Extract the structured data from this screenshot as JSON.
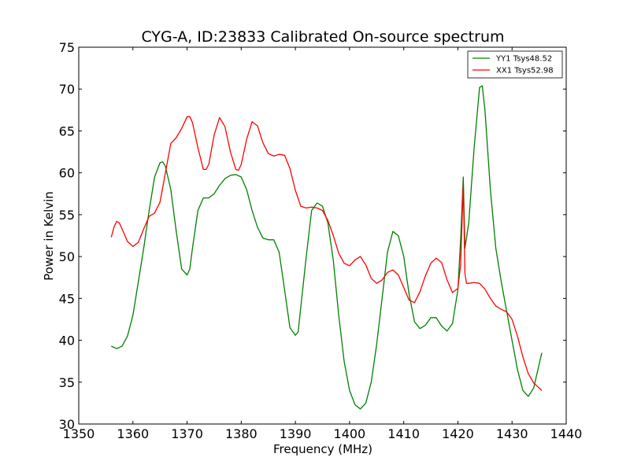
{
  "chart_data": {
    "type": "line",
    "title": "CYG-A, ID:23833 Calibrated On-source spectrum",
    "xlabel": "Frequency (MHz)",
    "ylabel": "Power in Kelvin",
    "xlim": [
      1350,
      1440
    ],
    "ylim": [
      30,
      75
    ],
    "xticks": [
      1350,
      1360,
      1370,
      1380,
      1390,
      1400,
      1410,
      1420,
      1430,
      1440
    ],
    "yticks": [
      30,
      35,
      40,
      45,
      50,
      55,
      60,
      65,
      70,
      75
    ],
    "grid": false,
    "legend_position": "top-right",
    "series": [
      {
        "name": "YY1 Tsys48.52",
        "color": "#008000",
        "x": [
          1356,
          1357,
          1358,
          1359,
          1360,
          1361,
          1362,
          1363,
          1364,
          1365,
          1365.5,
          1366,
          1367,
          1368,
          1369,
          1370,
          1370.5,
          1371,
          1372,
          1373,
          1374,
          1375,
          1376,
          1377,
          1378,
          1379,
          1380,
          1381,
          1382,
          1383,
          1384,
          1385,
          1386,
          1387,
          1388,
          1389,
          1390,
          1390.5,
          1391,
          1392,
          1393,
          1394,
          1395,
          1396,
          1397,
          1398,
          1399,
          1400,
          1401,
          1402,
          1403,
          1404,
          1405,
          1406,
          1407,
          1408,
          1409,
          1410,
          1411,
          1412,
          1413,
          1414,
          1415,
          1416,
          1417,
          1418,
          1419,
          1420,
          1420.5,
          1421,
          1421.3,
          1422,
          1423,
          1424,
          1424.5,
          1425,
          1426,
          1427,
          1428,
          1429,
          1430,
          1431,
          1432,
          1433,
          1434,
          1435.5
        ],
        "y": [
          39.3,
          39,
          39.3,
          40.5,
          43,
          47,
          51,
          55.5,
          59.5,
          61.2,
          61.3,
          60.8,
          58,
          53,
          48.5,
          47.8,
          48.5,
          51,
          55.5,
          57,
          57,
          57.5,
          58.5,
          59.3,
          59.7,
          59.8,
          59.5,
          58,
          55.5,
          53.5,
          52.2,
          52,
          52,
          50.5,
          46,
          41.5,
          40.6,
          41,
          44,
          50,
          55.5,
          56.4,
          56,
          54,
          49.5,
          43,
          37.5,
          34,
          32.3,
          31.8,
          32.5,
          35,
          39.5,
          45,
          50.5,
          53,
          52.5,
          50,
          45.5,
          42.2,
          41.4,
          41.8,
          42.7,
          42.7,
          41.7,
          41.1,
          42,
          46,
          52,
          59.5,
          51,
          54,
          63,
          70.2,
          70.4,
          67.5,
          58,
          51,
          47,
          43.5,
          40,
          36.5,
          34,
          33.3,
          34.3,
          38.5
        ]
      },
      {
        "name": "XX1 Tsys52.98",
        "color": "#ff0000",
        "x": [
          1356,
          1356.5,
          1357,
          1357.5,
          1358,
          1359,
          1360,
          1361,
          1362,
          1363,
          1364,
          1365,
          1366,
          1367,
          1368,
          1369,
          1370,
          1370.5,
          1371,
          1372,
          1373,
          1373.5,
          1374,
          1375,
          1376,
          1377,
          1378,
          1379,
          1379.5,
          1380,
          1381,
          1382,
          1383,
          1384,
          1385,
          1386,
          1387,
          1388,
          1389,
          1390,
          1391,
          1392,
          1393,
          1394,
          1395,
          1396,
          1397,
          1398,
          1399,
          1400,
          1401,
          1402,
          1403,
          1404,
          1405,
          1406,
          1407,
          1408,
          1409,
          1410,
          1411,
          1412,
          1413,
          1414,
          1415,
          1416,
          1417,
          1418,
          1419,
          1420,
          1420.5,
          1421,
          1421.3,
          1421.6,
          1422,
          1423,
          1424,
          1425,
          1426,
          1427,
          1428,
          1429,
          1430,
          1431,
          1432,
          1433,
          1434,
          1435.5
        ],
        "y": [
          52.3,
          53.5,
          54.2,
          54,
          53.3,
          51.8,
          51.2,
          51.7,
          53.3,
          54.8,
          55.2,
          56.5,
          60,
          63.5,
          64.2,
          65.3,
          66.7,
          66.7,
          66,
          63,
          60.4,
          60.4,
          61,
          64.5,
          66.6,
          65.5,
          62.5,
          60.4,
          60.3,
          61,
          64,
          66.1,
          65.6,
          63.6,
          62.3,
          62,
          62.2,
          62.1,
          60.5,
          57.9,
          56,
          55.8,
          55.9,
          55.8,
          55.5,
          54.3,
          52.5,
          50.4,
          49.2,
          48.9,
          49.6,
          50,
          49,
          47.4,
          46.8,
          47.2,
          48.1,
          48.4,
          47.8,
          46.3,
          44.8,
          44.5,
          45.8,
          47.7,
          49.2,
          49.8,
          49.3,
          47.2,
          45.7,
          46.2,
          49,
          58.6,
          48,
          46.8,
          46.8,
          46.9,
          46.8,
          46.1,
          45,
          44.1,
          43.7,
          43.4,
          42.5,
          40.5,
          38,
          36,
          34.9,
          34
        ]
      }
    ]
  }
}
